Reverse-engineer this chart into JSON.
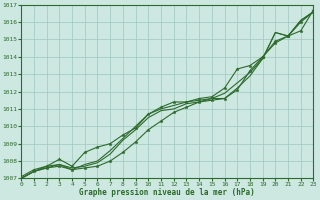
{
  "xlabel": "Graphe pression niveau de la mer (hPa)",
  "x_ticks": [
    0,
    1,
    2,
    3,
    4,
    5,
    6,
    7,
    8,
    9,
    10,
    11,
    12,
    13,
    14,
    15,
    16,
    17,
    18,
    19,
    20,
    21,
    22,
    23
  ],
  "ylim": [
    1007,
    1017
  ],
  "xlim": [
    0,
    23
  ],
  "y_ticks": [
    1007,
    1008,
    1009,
    1010,
    1011,
    1012,
    1013,
    1014,
    1015,
    1016,
    1017
  ],
  "line_color": "#2d6a2d",
  "bg_color": "#cce8e0",
  "grid_color": "#a0c8c0",
  "line_marked1": [
    1007.0,
    1007.4,
    1007.6,
    1007.7,
    1007.5,
    1007.6,
    1007.7,
    1008.0,
    1008.5,
    1009.1,
    1009.8,
    1010.3,
    1010.8,
    1011.1,
    1011.4,
    1011.5,
    1011.6,
    1012.1,
    1013.2,
    1014.0,
    1014.8,
    1015.2,
    1016.0,
    1016.6
  ],
  "line_plain1": [
    1007.0,
    1007.4,
    1007.7,
    1007.8,
    1007.6,
    1007.7,
    1007.9,
    1008.4,
    1009.2,
    1009.8,
    1010.5,
    1010.9,
    1011.0,
    1011.3,
    1011.4,
    1011.6,
    1011.6,
    1012.2,
    1012.9,
    1013.9,
    1015.4,
    1015.2,
    1016.1,
    1016.6
  ],
  "line_marked2": [
    1007.1,
    1007.5,
    1007.7,
    1008.1,
    1007.7,
    1008.5,
    1008.8,
    1009.0,
    1009.5,
    1009.9,
    1010.7,
    1011.1,
    1011.4,
    1011.4,
    1011.6,
    1011.7,
    1012.2,
    1013.3,
    1013.5,
    1014.0,
    1014.9,
    1015.2,
    1015.5,
    1016.7
  ],
  "line_plain2": [
    1007.0,
    1007.4,
    1007.6,
    1007.8,
    1007.5,
    1007.8,
    1008.0,
    1008.6,
    1009.3,
    1010.0,
    1010.7,
    1011.0,
    1011.2,
    1011.4,
    1011.5,
    1011.6,
    1011.9,
    1012.5,
    1013.1,
    1013.9,
    1015.4,
    1015.2,
    1016.1,
    1016.6
  ]
}
